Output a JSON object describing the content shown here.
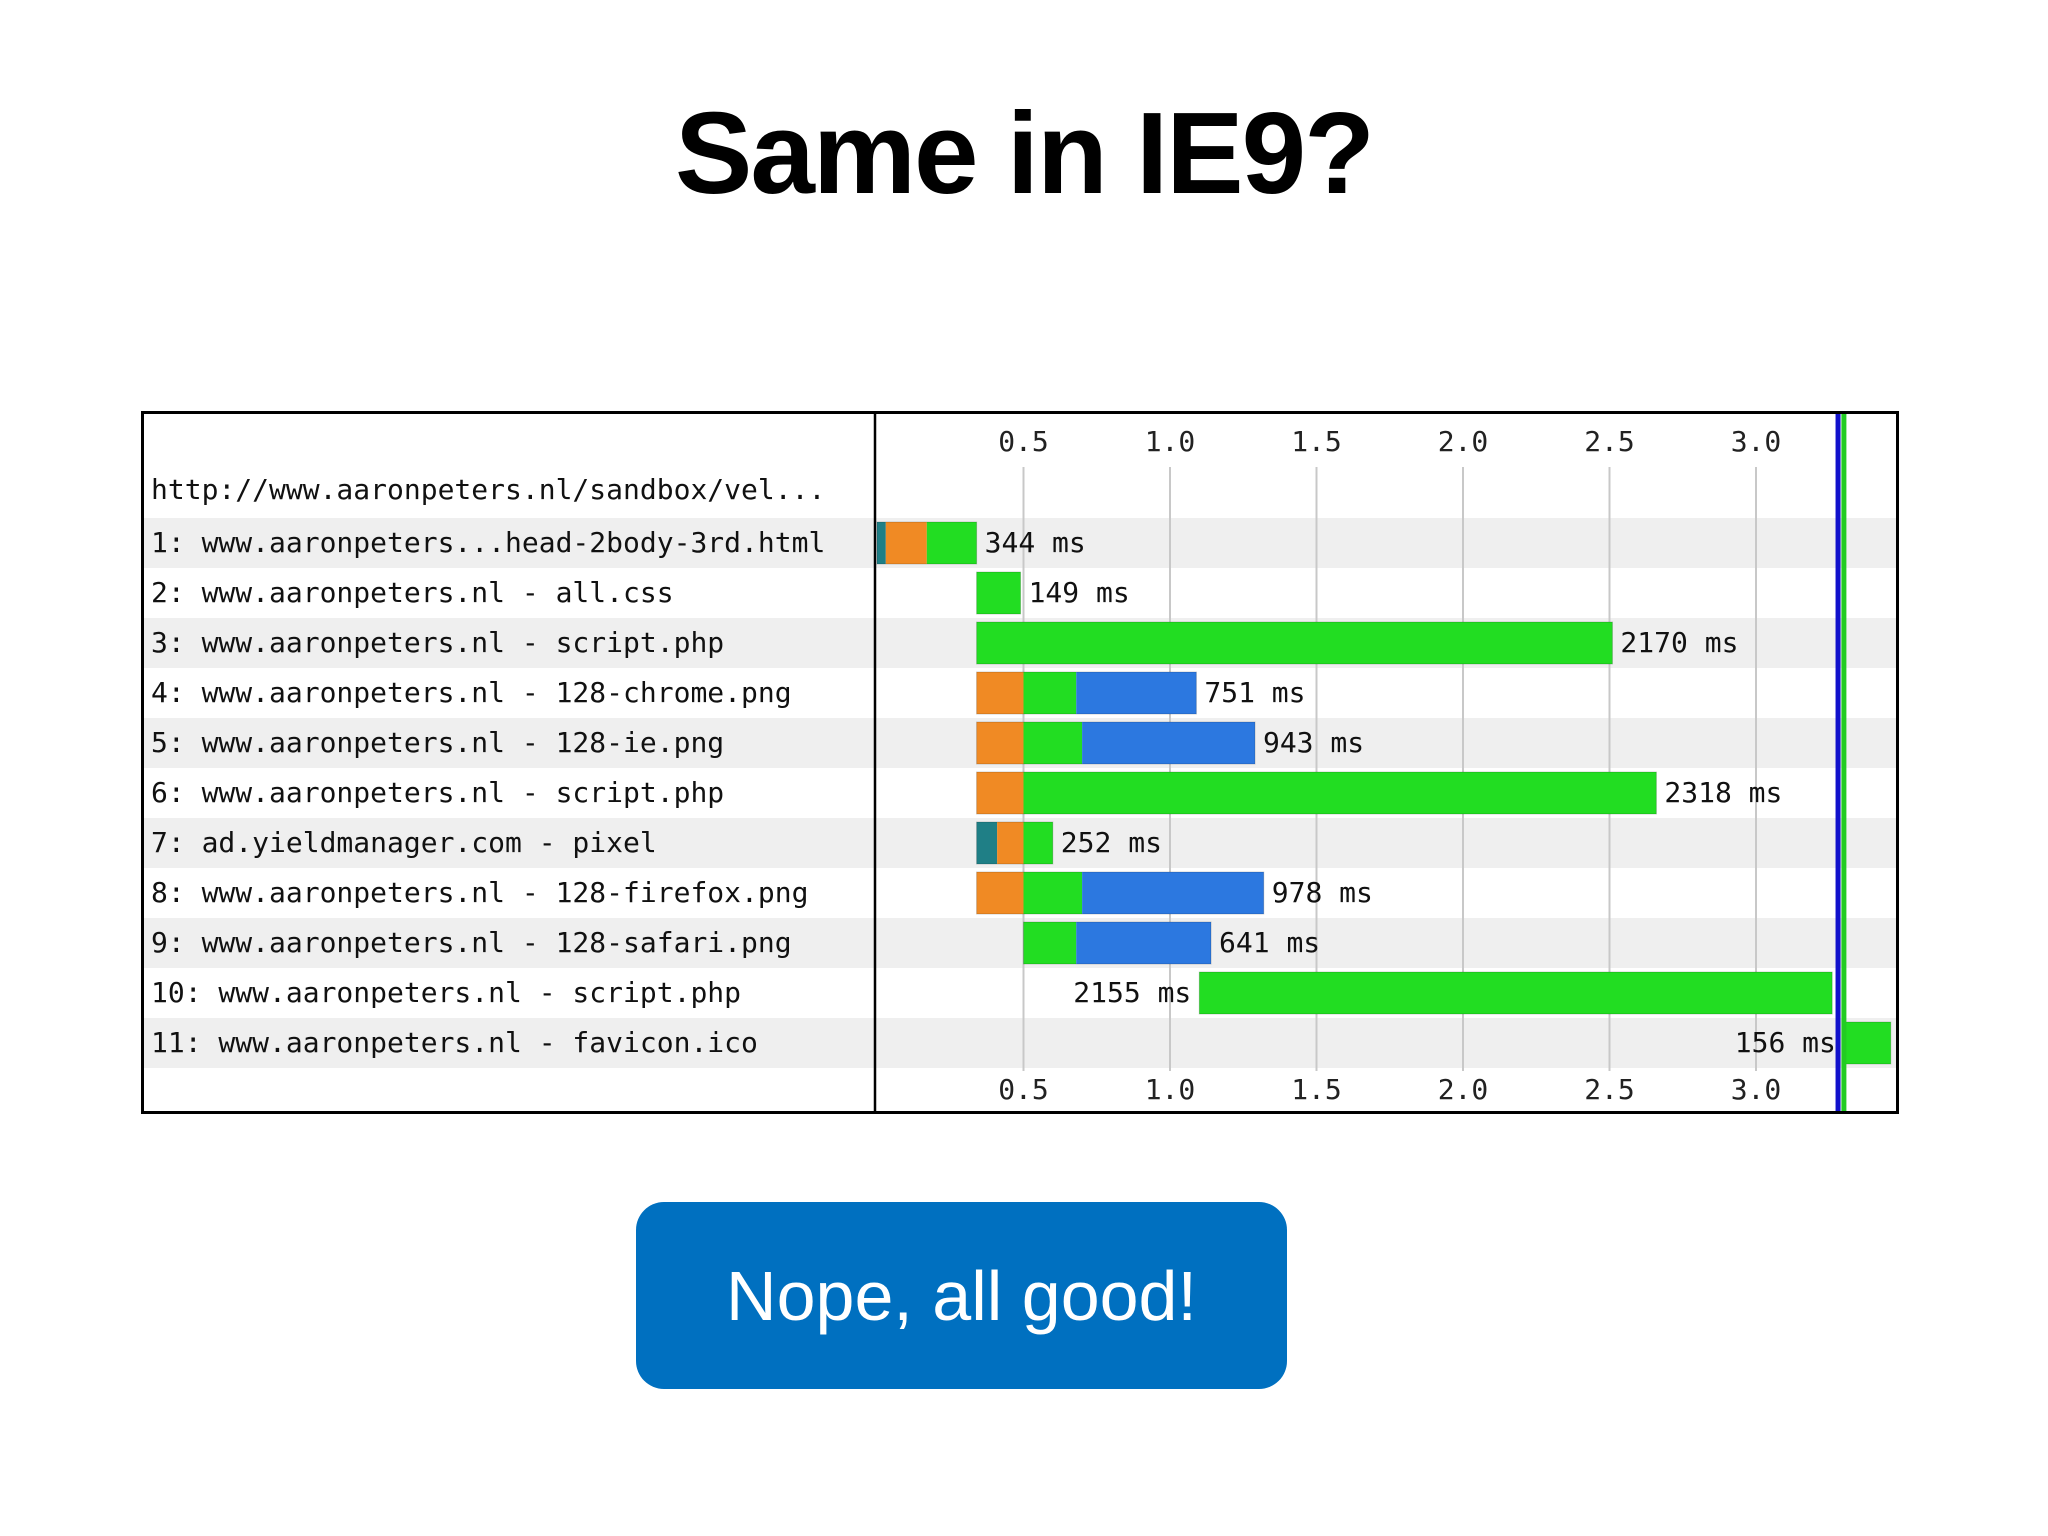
{
  "slide": {
    "title": "Same in IE9?",
    "callout": "Nope, all good!"
  },
  "colors": {
    "dns": "#1f7f86",
    "connect": "#f08a24",
    "ttfb": "#22dd22",
    "download": "#2c78e0",
    "row_alt": "#efefef",
    "gridline": "#c8c8c8",
    "doc_complete_line": "#1111cc",
    "onload_line": "#22cc22",
    "callout_bg": "#0070c0"
  },
  "chart_data": {
    "type": "waterfall",
    "page_url": "http://www.aaronpeters.nl/sandbox/vel...",
    "x_unit": "seconds",
    "xlim": [
      0,
      3.33
    ],
    "ticks": [
      "0.5",
      "1.0",
      "1.5",
      "2.0",
      "2.5",
      "3.0"
    ],
    "tick_values": [
      0.5,
      1.0,
      1.5,
      2.0,
      2.5,
      3.0
    ],
    "grid": true,
    "markers": [
      {
        "kind": "doc-complete",
        "value": 3.28
      },
      {
        "kind": "onload",
        "value": 3.3
      }
    ],
    "requests": [
      {
        "label": "1: www.aaronpeters...head-2body-3rd.html",
        "start": 0.0,
        "duration_label": "344 ms",
        "label_side": "right",
        "phases": {
          "dns": 0.03,
          "connect": 0.14,
          "ttfb": 0.17,
          "download": 0.0
        }
      },
      {
        "label": "2: www.aaronpeters.nl - all.css",
        "start": 0.34,
        "duration_label": "149 ms",
        "label_side": "right",
        "phases": {
          "dns": 0.0,
          "connect": 0.0,
          "ttfb": 0.15,
          "download": 0.0
        }
      },
      {
        "label": "3: www.aaronpeters.nl - script.php",
        "start": 0.34,
        "duration_label": "2170 ms",
        "label_side": "right",
        "phases": {
          "dns": 0.0,
          "connect": 0.0,
          "ttfb": 2.17,
          "download": 0.0
        }
      },
      {
        "label": "4: www.aaronpeters.nl - 128-chrome.png",
        "start": 0.34,
        "duration_label": "751 ms",
        "label_side": "right",
        "phases": {
          "dns": 0.0,
          "connect": 0.16,
          "ttfb": 0.18,
          "download": 0.41
        }
      },
      {
        "label": "5: www.aaronpeters.nl - 128-ie.png",
        "start": 0.34,
        "duration_label": "943 ms",
        "label_side": "right",
        "phases": {
          "dns": 0.0,
          "connect": 0.16,
          "ttfb": 0.2,
          "download": 0.59
        }
      },
      {
        "label": "6: www.aaronpeters.nl - script.php",
        "start": 0.34,
        "duration_label": "2318 ms",
        "label_side": "right",
        "phases": {
          "dns": 0.0,
          "connect": 0.16,
          "ttfb": 2.16,
          "download": 0.0
        }
      },
      {
        "label": "7: ad.yieldmanager.com - pixel",
        "start": 0.34,
        "duration_label": "252 ms",
        "label_side": "right",
        "phases": {
          "dns": 0.07,
          "connect": 0.09,
          "ttfb": 0.1,
          "download": 0.0
        }
      },
      {
        "label": "8: www.aaronpeters.nl - 128-firefox.png",
        "start": 0.34,
        "duration_label": "978 ms",
        "label_side": "right",
        "phases": {
          "dns": 0.0,
          "connect": 0.16,
          "ttfb": 0.2,
          "download": 0.62
        }
      },
      {
        "label": "9: www.aaronpeters.nl - 128-safari.png",
        "start": 0.5,
        "duration_label": "641 ms",
        "label_side": "right",
        "phases": {
          "dns": 0.0,
          "connect": 0.0,
          "ttfb": 0.18,
          "download": 0.46
        }
      },
      {
        "label": "10: www.aaronpeters.nl - script.php",
        "start": 1.1,
        "duration_label": "2155 ms",
        "label_side": "left",
        "phases": {
          "dns": 0.0,
          "connect": 0.0,
          "ttfb": 2.16,
          "download": 0.0
        }
      },
      {
        "label": "11: www.aaronpeters.nl - favicon.ico",
        "start": 3.3,
        "duration_label": "156 ms",
        "label_side": "left",
        "phases": {
          "dns": 0.0,
          "connect": 0.0,
          "ttfb": 0.16,
          "download": 0.0
        }
      }
    ]
  }
}
